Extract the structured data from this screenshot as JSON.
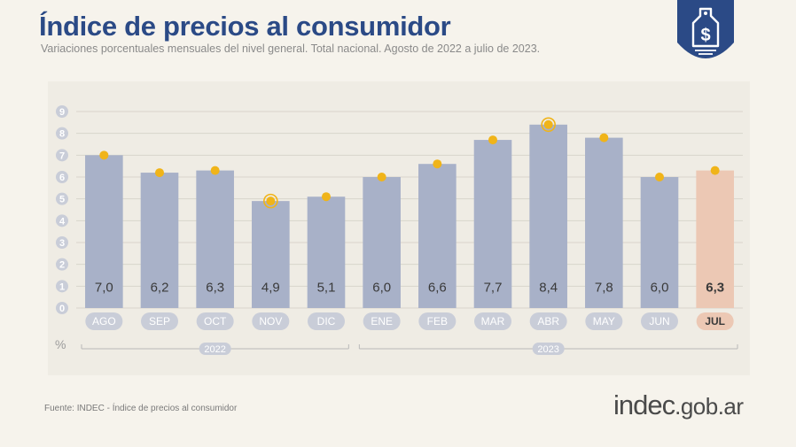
{
  "header": {
    "title": "Índice de precios al consumidor",
    "subtitle": "Variaciones porcentuales mensuales del nivel general. Total nacional. Agosto de 2022 a julio de 2023."
  },
  "chart_data": {
    "type": "bar",
    "categories": [
      "AGO",
      "SEP",
      "OCT",
      "NOV",
      "DIC",
      "ENE",
      "FEB",
      "MAR",
      "ABR",
      "MAY",
      "JUN",
      "JUL"
    ],
    "values": [
      7.0,
      6.2,
      6.3,
      4.9,
      5.1,
      6.0,
      6.6,
      7.7,
      8.4,
      7.8,
      6.0,
      6.3
    ],
    "value_labels": [
      "7,0",
      "6,2",
      "6,3",
      "4,9",
      "5,1",
      "6,0",
      "6,6",
      "7,7",
      "8,4",
      "7,8",
      "6,0",
      "6,3"
    ],
    "highlighted_category": "JUL",
    "highlighted_dots": [
      "NOV",
      "ABR"
    ],
    "yticks": [
      0,
      1,
      2,
      3,
      4,
      5,
      6,
      7,
      8,
      9
    ],
    "ylim": [
      0,
      9
    ],
    "unit": "%",
    "years": [
      {
        "label": "2022",
        "categories": [
          "AGO",
          "SEP",
          "OCT",
          "NOV",
          "DIC"
        ]
      },
      {
        "label": "2023",
        "categories": [
          "ENE",
          "FEB",
          "MAR",
          "ABR",
          "MAY",
          "JUN",
          "JUL"
        ]
      }
    ],
    "grid": true,
    "colors": {
      "bar": "#a8b1c8",
      "highlight_bar": "#ecc8b4",
      "dot": "#f0b419",
      "grid": "#d8d5cc",
      "label": "#3a3a3a",
      "category_pill": "#c9cdd8",
      "highlight_pill": "#ecc8b4"
    }
  },
  "footer": {
    "source": "Fuente: INDEC - Índice de precios al consumidor",
    "brand_main": "indec",
    "brand_suffix": ".gob.ar"
  },
  "colors": {
    "title": "#2b4a86",
    "badge": "#2b4a86",
    "background": "#f6f3ec"
  },
  "icons": {
    "badge": "price-tag-dollar-icon"
  }
}
